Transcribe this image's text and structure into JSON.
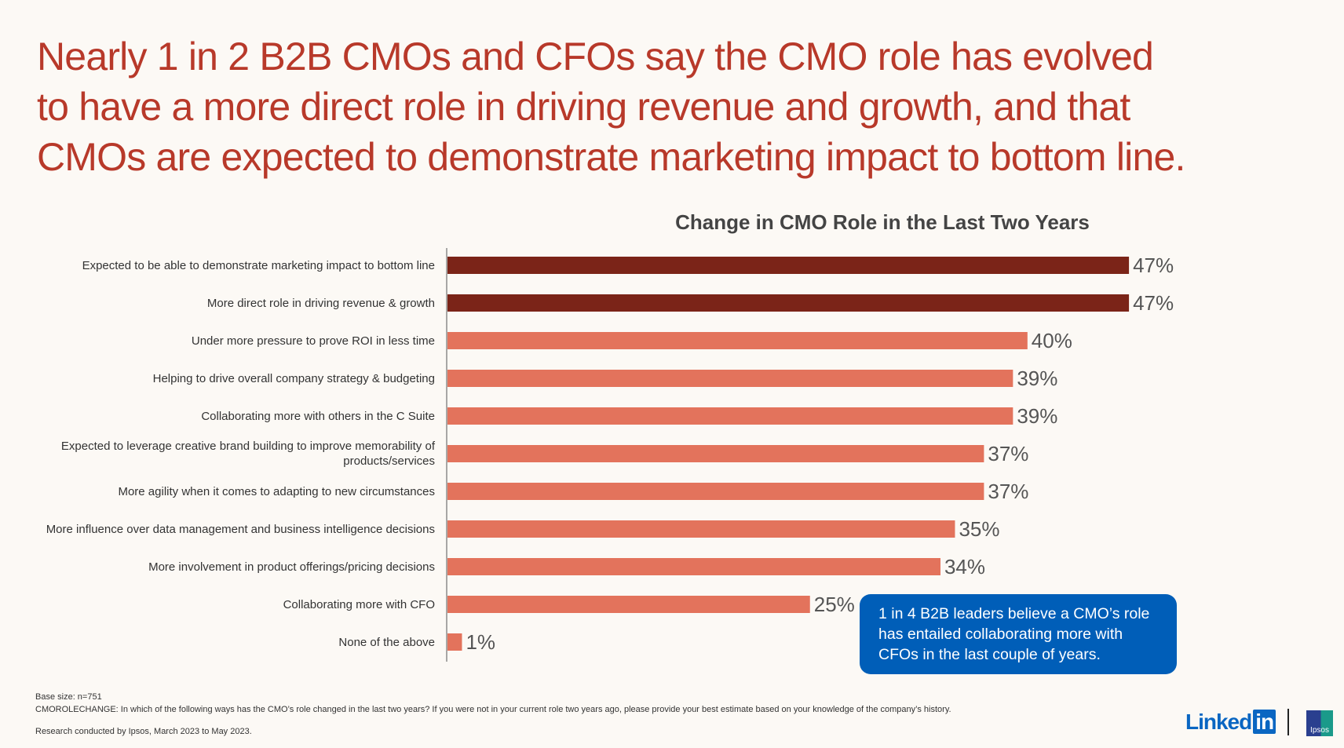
{
  "headline": [
    "Nearly 1 in 2 B2B CMOs and CFOs say the CMO role has evolved",
    "to have a more direct role in driving revenue and growth, and that",
    "CMOs are expected to demonstrate marketing impact to bottom line."
  ],
  "chart_data": {
    "type": "bar",
    "orientation": "horizontal",
    "title": "Change in CMO Role in the Last Two Years",
    "categories": [
      "Expected to be able to demonstrate marketing impact to bottom line",
      "More direct role in driving revenue & growth",
      "Under more pressure to prove ROI in less time",
      "Helping to drive overall company strategy & budgeting",
      "Collaborating more with others in the C Suite",
      "Expected to leverage creative brand building to improve memorability of products/services",
      "More agility when it comes to adapting to new circumstances",
      "More influence over data management and business intelligence decisions",
      "More involvement in product offerings/pricing decisions",
      "Collaborating more with CFO",
      "None of the above"
    ],
    "values": [
      47,
      47,
      40,
      39,
      39,
      37,
      37,
      35,
      34,
      25,
      1
    ],
    "data_labels": [
      "47%",
      "47%",
      "40%",
      "39%",
      "39%",
      "37%",
      "37%",
      "35%",
      "34%",
      "25%",
      "1%"
    ],
    "highlight_colors": [
      "#7b2418",
      "#7b2418",
      "#e3735c",
      "#e3735c",
      "#e3735c",
      "#e3735c",
      "#e3735c",
      "#e3735c",
      "#e3735c",
      "#e3735c",
      "#e3735c"
    ],
    "grid": false
  },
  "callout": "1 in 4 B2B leaders believe a CMO’s role has entailed collaborating more with CFOs in the last couple of years.",
  "footnotes": {
    "base": "Base size: n=751",
    "question": "CMOROLECHANGE: In which of the following ways has the CMO’s role changed in the last two years? If you were not in your current role two years ago, please provide your best estimate based on your knowledge of the company’s history.",
    "research": "Research conducted by Ipsos, March 2023 to May 2023."
  },
  "logos": {
    "linkedin": "Linked",
    "linkedin_in": "in",
    "ipsos": "Ipsos"
  },
  "colors": {
    "headline": "#b8392a",
    "dark_bar": "#7b2418",
    "light_bar": "#e3735c",
    "callout": "#005eb8"
  }
}
